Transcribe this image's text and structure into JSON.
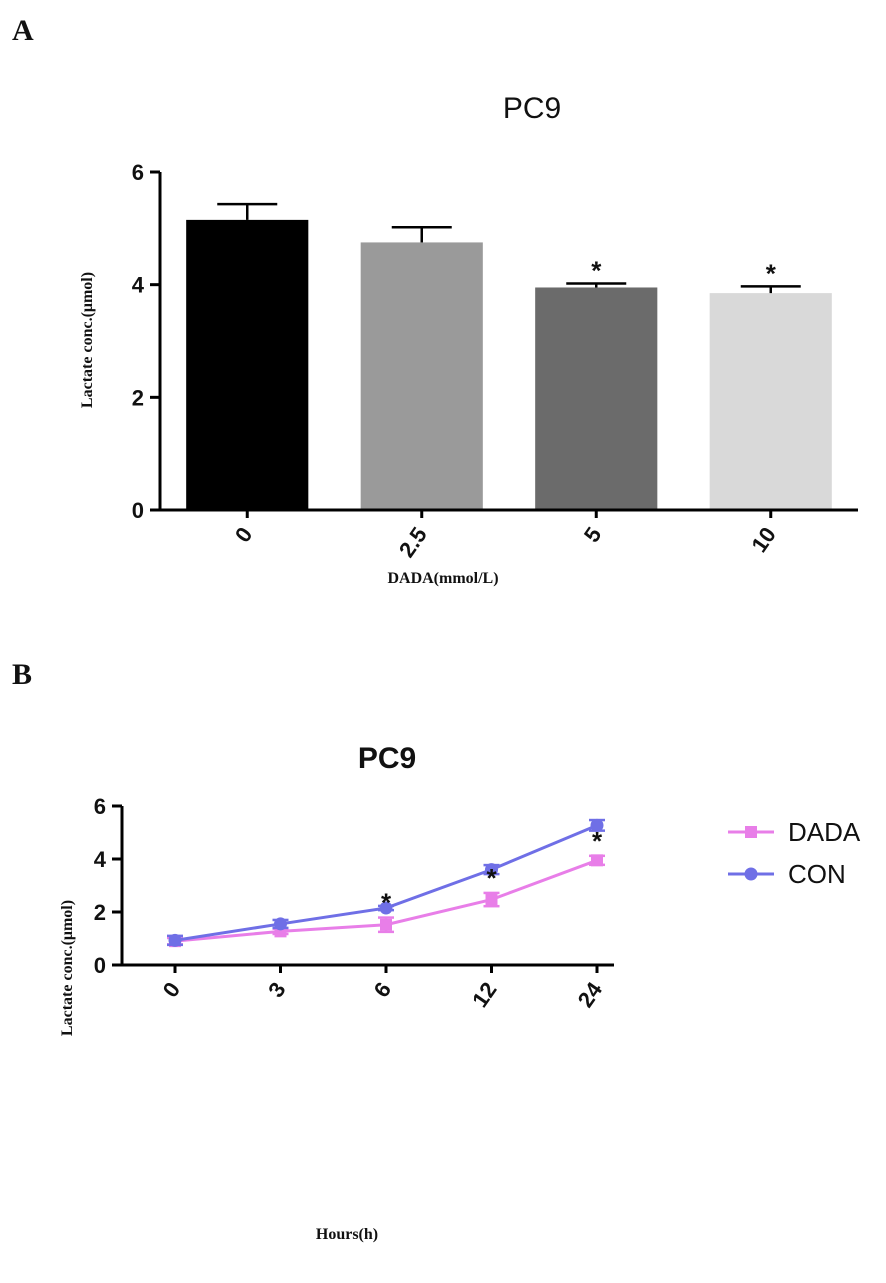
{
  "figure": {
    "panel_labels": [
      "A",
      "B"
    ]
  },
  "chart_data": [
    {
      "type": "bar",
      "panel": "A",
      "title": "PC9",
      "xlabel": "DADA(mmol/L)",
      "ylabel": "Lactate conc.(μmol)",
      "categories": [
        "0",
        "2.5",
        "5",
        "10"
      ],
      "values": [
        5.15,
        4.75,
        3.95,
        3.85
      ],
      "errors": [
        0.28,
        0.27,
        0.07,
        0.12
      ],
      "significance": [
        "",
        "",
        "*",
        "*"
      ],
      "bar_colors": [
        "#000000",
        "#9a9a9a",
        "#6b6b6b",
        "#d9d9d9"
      ],
      "ylim": [
        0,
        6
      ],
      "yticks": [
        0,
        2,
        4,
        6
      ],
      "grid": false,
      "legend": "none"
    },
    {
      "type": "line",
      "panel": "B",
      "title": "PC9",
      "xlabel": "Hours(h)",
      "ylabel": "Lactate conc.(μmol)",
      "categories": [
        "0",
        "3",
        "6",
        "12",
        "24"
      ],
      "series": [
        {
          "name": "DADA",
          "values": [
            0.9,
            1.27,
            1.52,
            2.47,
            3.95
          ],
          "errors": [
            0.12,
            0.1,
            0.27,
            0.25,
            0.17
          ],
          "color": "#e87ee8",
          "marker": "square"
        },
        {
          "name": "CON",
          "values": [
            0.93,
            1.55,
            2.15,
            3.6,
            5.27
          ],
          "errors": [
            0.17,
            0.15,
            0.08,
            0.17,
            0.2
          ],
          "color": "#6f6fe6",
          "marker": "circle"
        }
      ],
      "significance": [
        "",
        "",
        "*",
        "*",
        "*"
      ],
      "ylim": [
        0,
        6
      ],
      "yticks": [
        0,
        2,
        4,
        6
      ],
      "grid": false,
      "legend": "top-right"
    }
  ]
}
